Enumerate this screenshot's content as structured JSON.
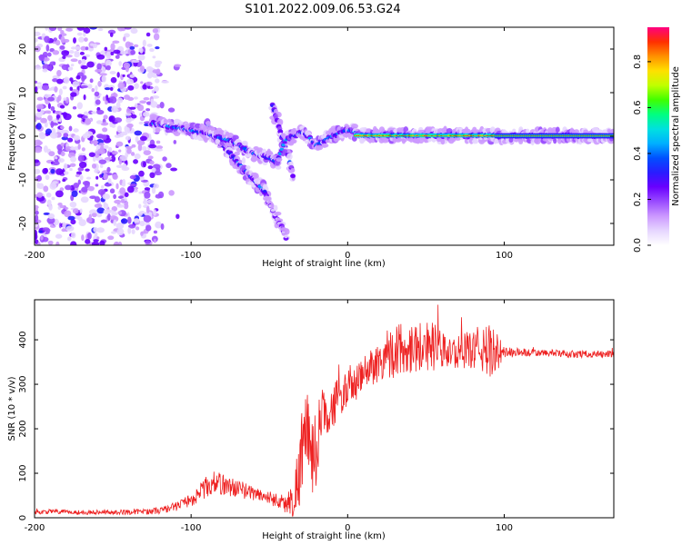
{
  "figure": {
    "title": "S101.2022.009.06.53.G24"
  },
  "chart_data": [
    {
      "type": "heatmap",
      "xlabel": "Height of straight line (km)",
      "ylabel": "Frequency (Hz)",
      "xlim": [
        -200,
        170
      ],
      "ylim": [
        -25,
        25
      ],
      "xticks": [
        -200,
        -100,
        0,
        100
      ],
      "yticks": [
        -20,
        -10,
        0,
        10,
        20
      ],
      "grid": false,
      "colorbar": {
        "label": "Normalized spectral amplitude",
        "range": [
          0.0,
          0.95
        ],
        "ticks": [
          "0.0",
          "0.2",
          "0.4",
          "0.6",
          "0.8"
        ],
        "colormap": [
          "#ffffff",
          "#e6d6ff",
          "#cc99ff",
          "#9a4cff",
          "#6a00ff",
          "#2a1cff",
          "#0050ff",
          "#00b0ff",
          "#00e0e0",
          "#00ff80",
          "#40ff00",
          "#c0ff00",
          "#ffe000",
          "#ff9000",
          "#ff3000",
          "#ff0080"
        ]
      },
      "features": {
        "noise_region_x": [
          -200,
          -120
        ],
        "main_track": [
          [
            -125,
            3
          ],
          [
            -110,
            2
          ],
          [
            -95,
            1
          ],
          [
            -85,
            0
          ],
          [
            -75,
            -1
          ],
          [
            -60,
            -4
          ],
          [
            -50,
            -5
          ],
          [
            -45,
            -6
          ],
          [
            -40,
            -1
          ],
          [
            -35,
            0
          ],
          [
            -28,
            1
          ],
          [
            -20,
            -2
          ],
          [
            -10,
            0
          ],
          [
            0,
            1.5
          ],
          [
            10,
            0.3
          ],
          [
            40,
            0.2
          ],
          [
            70,
            0.2
          ],
          [
            90,
            0.1
          ],
          [
            170,
            0.1
          ]
        ],
        "lower_branch": [
          [
            -90,
            3
          ],
          [
            -80,
            -2
          ],
          [
            -70,
            -6
          ],
          [
            -60,
            -10
          ],
          [
            -52,
            -13
          ]
        ],
        "upper_branch": [
          [
            -48,
            7
          ],
          [
            -42,
            0
          ],
          [
            -36,
            -7
          ],
          [
            -34,
            -11
          ]
        ],
        "faint_tail": [
          [
            -52,
            -14
          ],
          [
            -45,
            -19
          ],
          [
            -38,
            -24
          ]
        ],
        "strong_segment_x": [
          5,
          95
        ]
      }
    },
    {
      "type": "line",
      "xlabel": "Height of straight line (km)",
      "ylabel": "SNR (10 * v/v)",
      "xlim": [
        -200,
        170
      ],
      "ylim": [
        0,
        490
      ],
      "xticks": [
        -200,
        -100,
        0,
        100
      ],
      "yticks": [
        0,
        100,
        200,
        300,
        400
      ],
      "grid": false,
      "line_color": "#ee2222",
      "series": [
        {
          "x": [
            -200,
            -190,
            -180,
            -170,
            -160,
            -150,
            -140,
            -130,
            -120,
            -110,
            -100,
            -95,
            -90,
            -85,
            -80,
            -75,
            -70,
            -65,
            -60,
            -55,
            -50,
            -45,
            -40,
            -35,
            -32,
            -30,
            -28,
            -25,
            -22,
            -20,
            -18,
            -15,
            -12,
            -10,
            -8,
            -5,
            -2,
            0,
            5,
            10,
            15,
            20,
            25,
            30,
            35,
            40,
            45,
            50,
            55,
            60,
            65,
            70,
            75,
            80,
            85,
            90,
            95,
            100,
            110,
            120,
            130,
            140,
            150,
            160,
            170
          ],
          "y": [
            12,
            14,
            13,
            12,
            13,
            12,
            13,
            14,
            16,
            25,
            40,
            55,
            70,
            80,
            75,
            70,
            65,
            60,
            55,
            50,
            45,
            40,
            30,
            40,
            80,
            140,
            180,
            160,
            140,
            150,
            220,
            230,
            250,
            240,
            260,
            270,
            285,
            290,
            300,
            320,
            340,
            350,
            365,
            375,
            380,
            385,
            385,
            390,
            385,
            375,
            370,
            372,
            375,
            380,
            378,
            375,
            370,
            372,
            372,
            370,
            370,
            368,
            368,
            368,
            368
          ],
          "spread": [
            5,
            5,
            5,
            5,
            5,
            5,
            6,
            6,
            8,
            10,
            15,
            20,
            25,
            25,
            25,
            22,
            20,
            18,
            16,
            15,
            15,
            18,
            20,
            40,
            80,
            100,
            110,
            100,
            90,
            90,
            70,
            60,
            55,
            50,
            50,
            45,
            40,
            40,
            40,
            40,
            45,
            45,
            55,
            60,
            60,
            60,
            60,
            60,
            55,
            45,
            35,
            35,
            40,
            45,
            55,
            60,
            50,
            12,
            10,
            8,
            8,
            8,
            8,
            8,
            8
          ]
        }
      ]
    }
  ]
}
